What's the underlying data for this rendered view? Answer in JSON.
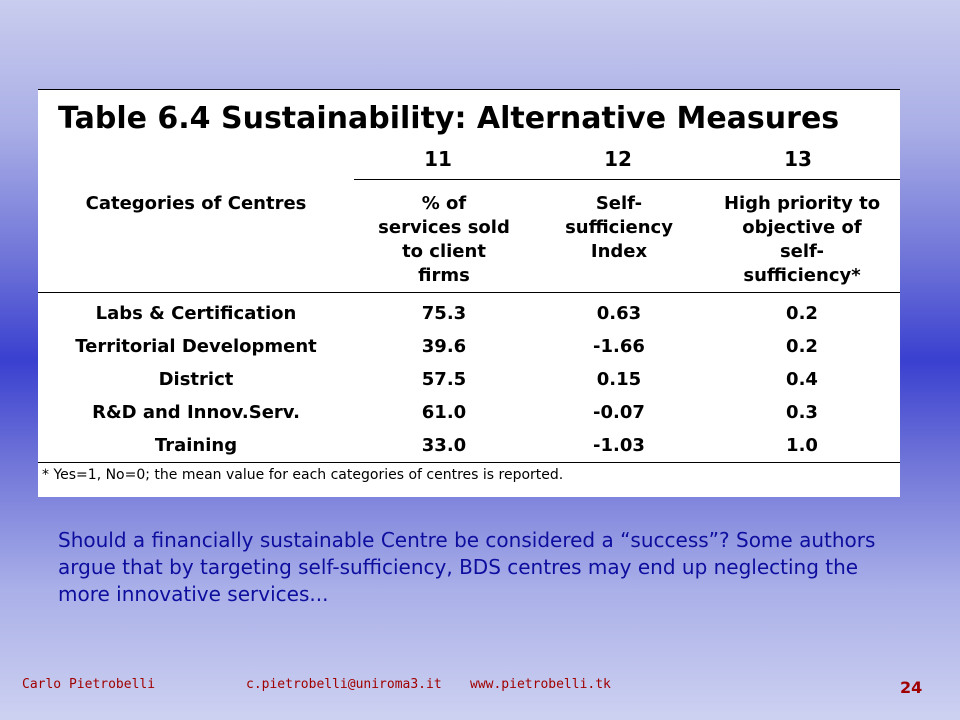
{
  "table": {
    "title": "Table 6.4  Sustainability: Alternative Measures",
    "column_numbers": [
      "11",
      "12",
      "13"
    ],
    "row_header_label": "Categories of Centres",
    "column_headers": [
      "% of\nservices sold\nto client\nfirms",
      "Self-\nsufficiency\nIndex",
      "High priority to\nobjective of\nself-\nsufficiency*"
    ],
    "rows": [
      {
        "category": "Labs & Certification",
        "services_sold": "75.3",
        "self_sufficiency_index": "0.63",
        "high_priority": "0.2"
      },
      {
        "category": "Territorial Development",
        "services_sold": "39.6",
        "self_sufficiency_index": "-1.66",
        "high_priority": "0.2"
      },
      {
        "category": "District",
        "services_sold": "57.5",
        "self_sufficiency_index": "0.15",
        "high_priority": "0.4"
      },
      {
        "category": "R&D and Innov.Serv.",
        "services_sold": "61.0",
        "self_sufficiency_index": "-0.07",
        "high_priority": "0.3"
      },
      {
        "category": "Training",
        "services_sold": "33.0",
        "self_sufficiency_index": "-1.03",
        "high_priority": "1.0"
      }
    ],
    "footnote": "* Yes=1, No=0; the mean value for each categories of centres is reported."
  },
  "body_text": "Should a financially sustainable Centre be considered a “success”? Some authors argue that by targeting self-sufficiency, BDS centres may end up neglecting the more innovative services...",
  "footer": {
    "author": "Carlo Pietrobelli",
    "email": "c.pietrobelli@uniroma3.it",
    "website": "www.pietrobelli.tk",
    "page_number": "24"
  },
  "colors": {
    "body_text": "#0d0d9e",
    "footer_text": "#a00000",
    "background_center": "#3a40cf"
  }
}
